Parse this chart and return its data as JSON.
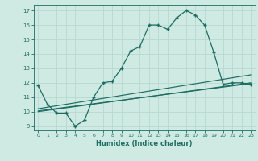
{
  "xlabel": "Humidex (Indice chaleur)",
  "bg_color": "#ceeae2",
  "grid_color": "#b8d8d0",
  "line_color": "#1a6e64",
  "xlim": [
    -0.5,
    23.5
  ],
  "ylim": [
    8.7,
    17.4
  ],
  "xticks": [
    0,
    1,
    2,
    3,
    4,
    5,
    6,
    7,
    8,
    9,
    10,
    11,
    12,
    13,
    14,
    15,
    16,
    17,
    18,
    19,
    20,
    21,
    22,
    23
  ],
  "yticks": [
    9,
    10,
    11,
    12,
    13,
    14,
    15,
    16,
    17
  ],
  "line1_x": [
    0,
    1,
    2,
    3,
    4,
    5,
    6,
    7,
    8,
    9,
    10,
    11,
    12,
    13,
    14,
    15,
    16,
    17,
    18,
    19,
    20,
    21,
    22,
    23
  ],
  "line1_y": [
    11.8,
    10.5,
    9.9,
    9.9,
    9.0,
    9.4,
    11.0,
    12.0,
    12.1,
    13.0,
    14.2,
    14.5,
    16.0,
    16.0,
    15.7,
    16.5,
    17.0,
    16.7,
    16.0,
    14.1,
    11.9,
    12.0,
    12.0,
    11.9
  ],
  "line2_x": [
    0,
    23
  ],
  "line2_y": [
    10.0,
    12.0
  ],
  "line3_x": [
    0,
    23
  ],
  "line3_y": [
    10.2,
    12.55
  ],
  "line4_x": [
    0,
    23
  ],
  "line4_y": [
    10.05,
    11.95
  ]
}
